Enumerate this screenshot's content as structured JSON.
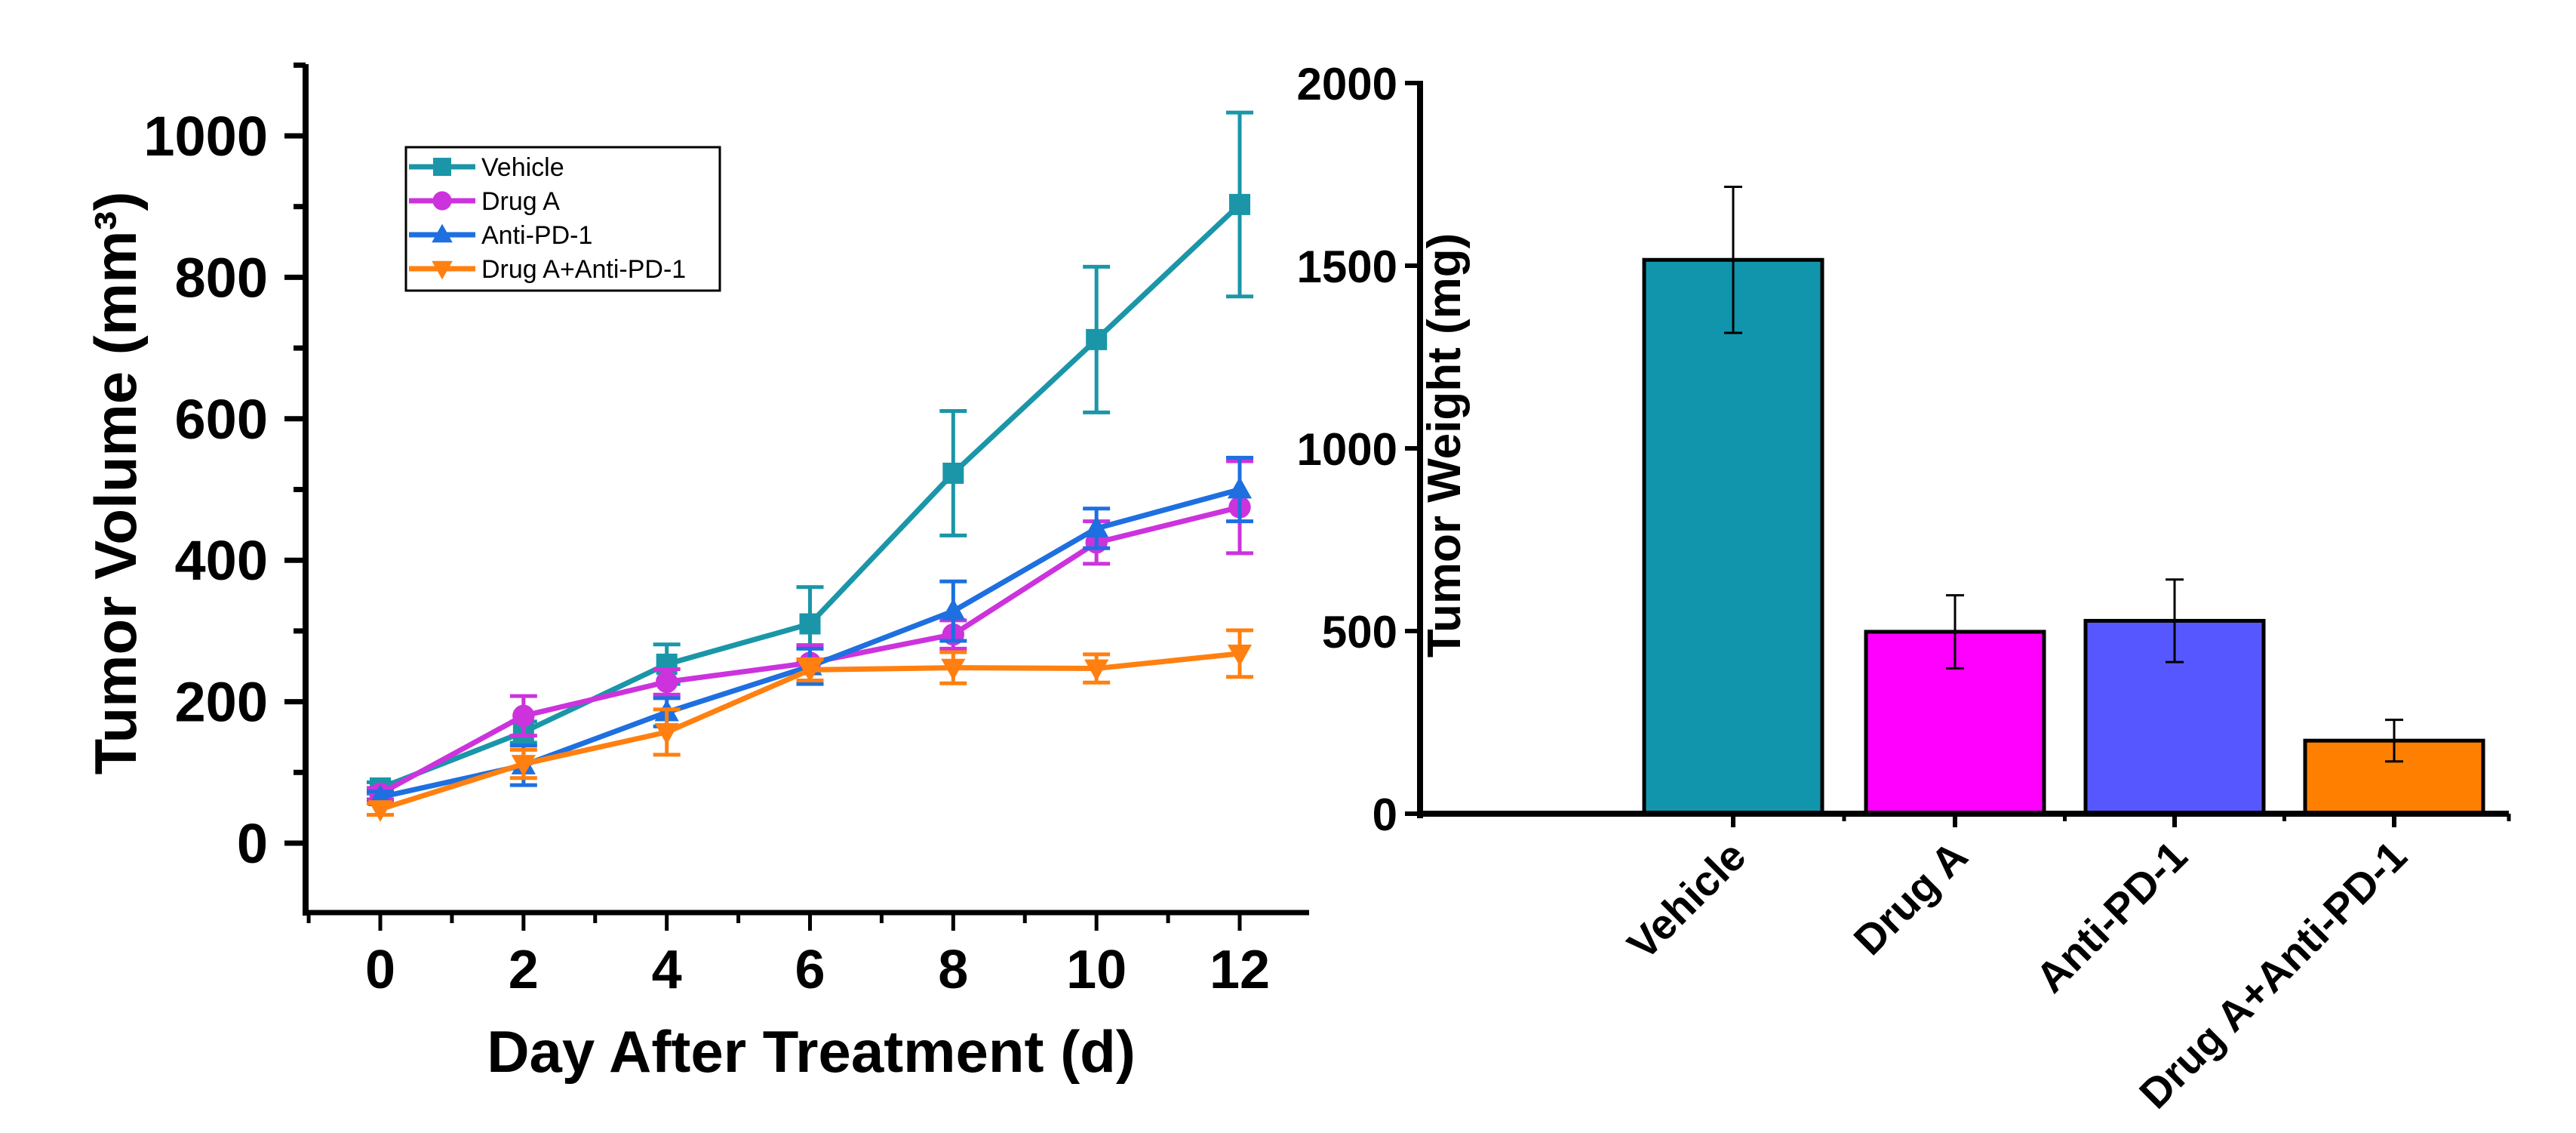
{
  "chart_data": [
    {
      "type": "line",
      "title": "",
      "xlabel": "Day After Treatment (d)",
      "ylabel": "Tumor Volume (mm³)",
      "x": [
        0,
        2,
        4,
        6,
        8,
        10,
        12
      ],
      "xticks": [
        "0",
        "2",
        "4",
        "6",
        "8",
        "10",
        "12"
      ],
      "yticks": [
        "0",
        "200",
        "400",
        "600",
        "800",
        "1000"
      ],
      "xlim": [
        -1.1,
        13.1
      ],
      "ylim": [
        -100,
        1110
      ],
      "grid": false,
      "legend": "top-left",
      "series": [
        {
          "name": "Vehicle",
          "marker": "square",
          "color": "#1A96A8",
          "values": [
            78,
            157,
            253,
            310,
            523,
            712,
            903
          ],
          "errors": [
            8,
            15,
            28,
            52,
            88,
            103,
            130
          ]
        },
        {
          "name": "Drug A",
          "marker": "circle",
          "color": "#CC33DD",
          "values": [
            70,
            180,
            228,
            255,
            295,
            425,
            475
          ],
          "errors": [
            8,
            28,
            18,
            25,
            20,
            30,
            65
          ]
        },
        {
          "name": "Anti-PD-1",
          "marker": "triangle-up",
          "color": "#1E6FE0",
          "values": [
            65,
            110,
            185,
            250,
            328,
            445,
            500
          ],
          "errors": [
            8,
            28,
            20,
            25,
            42,
            28,
            45
          ]
        },
        {
          "name": "Drug A+Anti-PD-1",
          "marker": "triangle-down",
          "color": "#FF8010",
          "values": [
            48,
            112,
            157,
            245,
            248,
            247,
            268
          ],
          "errors": [
            8,
            20,
            32,
            15,
            22,
            20,
            33
          ]
        }
      ]
    },
    {
      "type": "bar",
      "title": "",
      "xlabel": "",
      "ylabel": "Tumor Weight (mg)",
      "categories": [
        "Vehicle",
        "Drug A",
        "Anti-PD-1",
        "Drug A+Anti-PD-1"
      ],
      "values": [
        1516,
        498,
        528,
        200
      ],
      "errors": [
        200,
        100,
        113,
        57
      ],
      "colors": [
        "#1195AD",
        "#FF00FF",
        "#5757FF",
        "#FF8000"
      ],
      "yticks": [
        "0",
        "500",
        "1000",
        "1500",
        "2000"
      ],
      "ylim": [
        0,
        2000
      ],
      "grid": false
    }
  ]
}
